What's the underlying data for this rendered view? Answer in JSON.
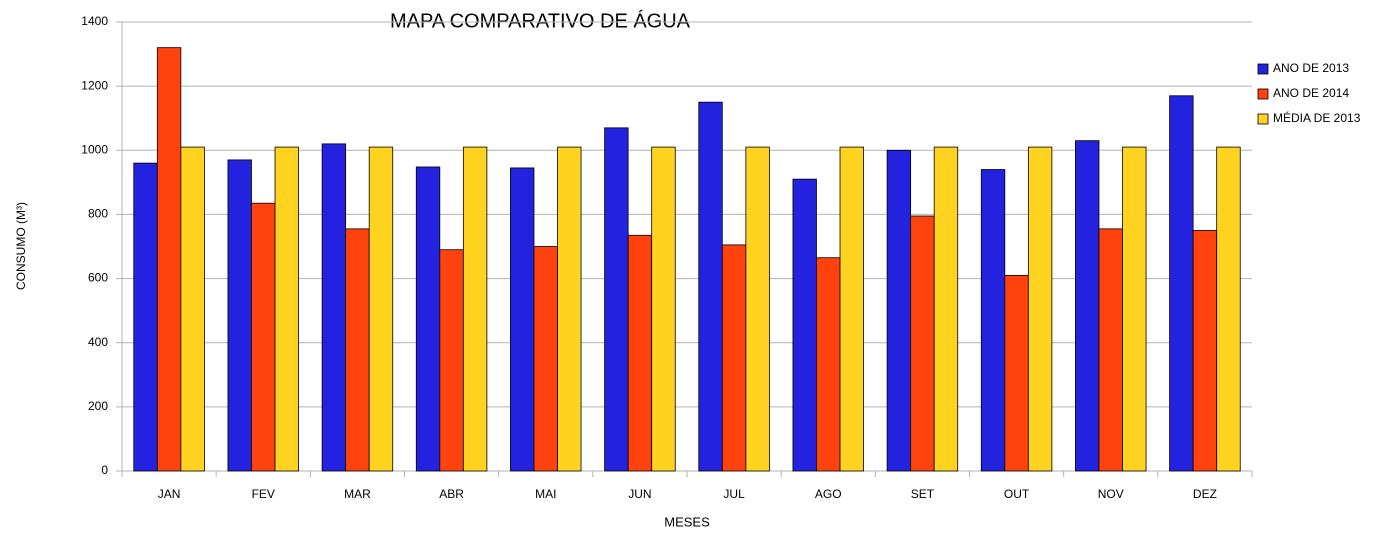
{
  "chart_data": {
    "type": "bar",
    "title": "MAPA COMPARATIVO DE ÁGUA",
    "x_label": "MESES",
    "y_label": "CONSUMO (M³)",
    "categories": [
      "JAN",
      "FEV",
      "MAR",
      "ABR",
      "MAI",
      "JUN",
      "JUL",
      "AGO",
      "SET",
      "OUT",
      "NOV",
      "DEZ"
    ],
    "series": [
      {
        "name": "ANO DE 2013",
        "color": "#2323df",
        "values": [
          960,
          970,
          1020,
          948,
          945,
          1070,
          1150,
          910,
          1000,
          940,
          1030,
          1170
        ]
      },
      {
        "name": "ANO DE 2014",
        "color": "#ff420e",
        "values": [
          1320,
          835,
          755,
          690,
          700,
          735,
          705,
          665,
          795,
          610,
          755,
          750
        ]
      },
      {
        "name": "MÉDIA DE 2013",
        "color": "#ffd320",
        "values": [
          1010,
          1010,
          1010,
          1010,
          1010,
          1010,
          1010,
          1010,
          1010,
          1010,
          1010,
          1010
        ]
      }
    ],
    "ylim": [
      0,
      1400
    ],
    "yticks": [
      0,
      200,
      400,
      600,
      800,
      1000,
      1200,
      1400
    ],
    "grid": true,
    "legend": "right"
  }
}
